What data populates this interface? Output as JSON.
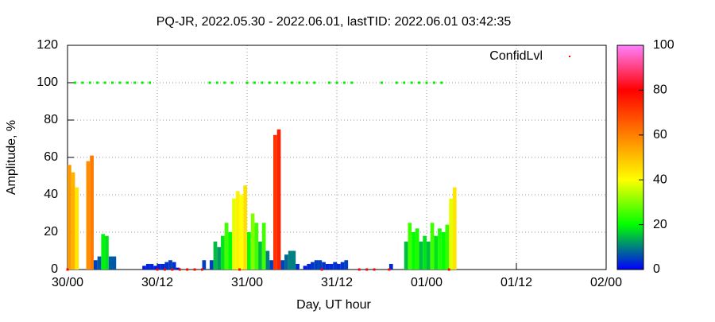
{
  "chart_data": {
    "type": "bar",
    "title": "PQ-JR, 2022.05.30 - 2022.06.01, lastTID: 2022.06.01 03:42:35",
    "xlabel": "Day, UT hour",
    "ylabel": "Amplitude, %",
    "xlim": [
      0,
      72
    ],
    "xticks": [
      {
        "value": 0,
        "label": "30/00"
      },
      {
        "value": 12,
        "label": "30/12"
      },
      {
        "value": 24,
        "label": "31/00"
      },
      {
        "value": 36,
        "label": "31/12"
      },
      {
        "value": 48,
        "label": "01/00"
      },
      {
        "value": 60,
        "label": "01/12"
      },
      {
        "value": 72,
        "label": "02/00"
      }
    ],
    "ylim": [
      0,
      120
    ],
    "yticks": [
      0,
      20,
      40,
      60,
      80,
      100,
      120
    ],
    "grid": true,
    "cblim": [
      0,
      100
    ],
    "cbticks": [
      0,
      20,
      40,
      60,
      80,
      100
    ],
    "palette": [
      "#0000ff",
      "#00ff00",
      "#ffff00",
      "#ff8000",
      "#ff0000",
      "#ff80ff"
    ],
    "x": [
      0,
      0.5,
      1,
      1.5,
      2,
      2.5,
      3,
      3.5,
      4,
      4.5,
      5,
      5.5,
      6,
      6.5,
      7,
      7.5,
      8,
      8.5,
      9,
      9.5,
      10,
      10.5,
      11,
      11.5,
      12,
      12.5,
      13,
      13.5,
      14,
      14.5,
      15,
      15.5,
      16,
      16.5,
      17,
      17.5,
      18,
      18.5,
      19,
      19.5,
      20,
      20.5,
      21,
      21.5,
      22,
      22.5,
      23,
      23.5,
      24,
      24.5,
      25,
      25.5,
      26,
      26.5,
      27,
      27.5,
      28,
      28.5,
      29,
      29.5,
      30,
      30.5,
      31,
      31.5,
      32,
      32.5,
      33,
      33.5,
      34,
      34.5,
      35,
      35.5,
      36,
      36.5,
      37,
      37.5,
      38,
      38.5,
      39,
      39.5,
      40,
      40.5,
      41,
      41.5,
      42,
      42.5,
      43,
      43.5,
      44,
      44.5,
      45,
      45.5,
      46,
      46.5,
      47,
      47.5,
      48,
      48.5,
      49,
      49.5,
      50,
      50.5,
      51,
      51.5
    ],
    "values": [
      56,
      52,
      44,
      null,
      null,
      58,
      61,
      5,
      7,
      19,
      18,
      7,
      7,
      null,
      null,
      null,
      null,
      null,
      null,
      null,
      2,
      3,
      3,
      2,
      3,
      3,
      4,
      5,
      4,
      1,
      null,
      null,
      null,
      null,
      null,
      null,
      5,
      null,
      5,
      15,
      12,
      18,
      25,
      20,
      38,
      42,
      40,
      45,
      20,
      30,
      25,
      15,
      25,
      10,
      5,
      72,
      75,
      5,
      8,
      10,
      10,
      3,
      null,
      2,
      3,
      4,
      5,
      5,
      4,
      3,
      3,
      4,
      3,
      4,
      5,
      null,
      null,
      null,
      null,
      null,
      null,
      null,
      null,
      null,
      null,
      null,
      3,
      null,
      null,
      null,
      15,
      25,
      20,
      22,
      15,
      18,
      15,
      25,
      18,
      22,
      20,
      24,
      38,
      44
    ],
    "confid": {
      "name": "ConfidLvl",
      "color": "#ff0000",
      "high_color": "#00ee00",
      "x": [
        0,
        1,
        2,
        3,
        4,
        5,
        6,
        7,
        8,
        9,
        10,
        11,
        12,
        13,
        14,
        15,
        16,
        17,
        18,
        19,
        20,
        21,
        22,
        23,
        24,
        25,
        26,
        27,
        28,
        29,
        30,
        31,
        32,
        33,
        34,
        35,
        36,
        37,
        38,
        39,
        40,
        41,
        42,
        43,
        44,
        45,
        46,
        47,
        48,
        49,
        50,
        51
      ],
      "values": [
        0,
        100,
        100,
        100,
        100,
        100,
        100,
        100,
        100,
        100,
        100,
        100,
        0,
        0,
        0,
        0,
        0,
        0,
        0,
        100,
        100,
        100,
        100,
        0,
        100,
        100,
        100,
        100,
        100,
        100,
        100,
        100,
        100,
        100,
        0,
        100,
        100,
        100,
        100,
        0,
        0,
        0,
        100,
        0,
        100,
        100,
        100,
        100,
        100,
        100,
        100,
        0
      ]
    }
  }
}
